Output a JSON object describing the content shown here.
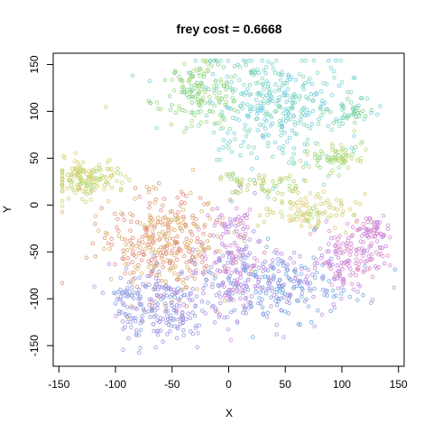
{
  "chart_data": {
    "type": "scatter",
    "title": "frey cost = 0.6668",
    "xlabel": "X",
    "ylabel": "Y",
    "xlim": [
      -155,
      155
    ],
    "ylim": [
      -172,
      162
    ],
    "xticks": [
      -150,
      -100,
      -50,
      0,
      50,
      100,
      150
    ],
    "yticks": [
      -150,
      -100,
      -50,
      0,
      50,
      100,
      150
    ],
    "grid": false,
    "marker": "open-circle",
    "clusters": [
      {
        "cx": -60,
        "cy": -40,
        "sx": 28,
        "sy": 28,
        "n": 360,
        "color": "#e28a7a",
        "color2": "#d9b36a"
      },
      {
        "cx": -28,
        "cy": 120,
        "sx": 20,
        "sy": 18,
        "n": 150,
        "color": "#7fd08a",
        "color2": "#a7d977"
      },
      {
        "cx": 40,
        "cy": 105,
        "sx": 33,
        "sy": 30,
        "n": 360,
        "color": "#7fd6b8",
        "color2": "#6fcde0"
      },
      {
        "cx": -125,
        "cy": 28,
        "sx": 18,
        "sy": 10,
        "n": 150,
        "color": "#b9d877",
        "color2": "#d9d070"
      },
      {
        "cx": 95,
        "cy": 52,
        "sx": 12,
        "sy": 8,
        "n": 70,
        "color": "#9dd97a",
        "color2": "#c4d870"
      },
      {
        "cx": 30,
        "cy": 22,
        "sx": 20,
        "sy": 6,
        "n": 60,
        "color": "#c8d06a",
        "color2": "#a9d47a"
      },
      {
        "cx": 70,
        "cy": -8,
        "sx": 20,
        "sy": 10,
        "n": 100,
        "color": "#bcd676",
        "color2": "#dcc86b"
      },
      {
        "cx": -55,
        "cy": -110,
        "sx": 24,
        "sy": 22,
        "n": 230,
        "color": "#8a9ee0",
        "color2": "#a88ee0"
      },
      {
        "cx": 45,
        "cy": -85,
        "sx": 30,
        "sy": 20,
        "n": 260,
        "color": "#6fa6e0",
        "color2": "#b38ae0"
      },
      {
        "cx": 5,
        "cy": -70,
        "sx": 15,
        "sy": 25,
        "n": 120,
        "color": "#d38ad8",
        "color2": "#9a8ee0"
      },
      {
        "cx": 108,
        "cy": -55,
        "sx": 16,
        "sy": 16,
        "n": 140,
        "color": "#c98adf",
        "color2": "#dd8ac4"
      },
      {
        "cx": 128,
        "cy": -25,
        "sx": 6,
        "sy": 8,
        "n": 50,
        "color": "#d88ad4",
        "color2": "#c98adf"
      },
      {
        "cx": 5,
        "cy": -20,
        "sx": 8,
        "sy": 10,
        "n": 40,
        "color": "#b08ade",
        "color2": "#d38ad8"
      },
      {
        "cx": 110,
        "cy": 100,
        "sx": 10,
        "sy": 8,
        "n": 40,
        "color": "#6fd6c4",
        "color2": "#7fd08a"
      },
      {
        "cx": -90,
        "cy": -95,
        "sx": 5,
        "sy": 4,
        "n": 18,
        "color": "#8a9ee0",
        "color2": "#8a9ee0"
      }
    ]
  }
}
